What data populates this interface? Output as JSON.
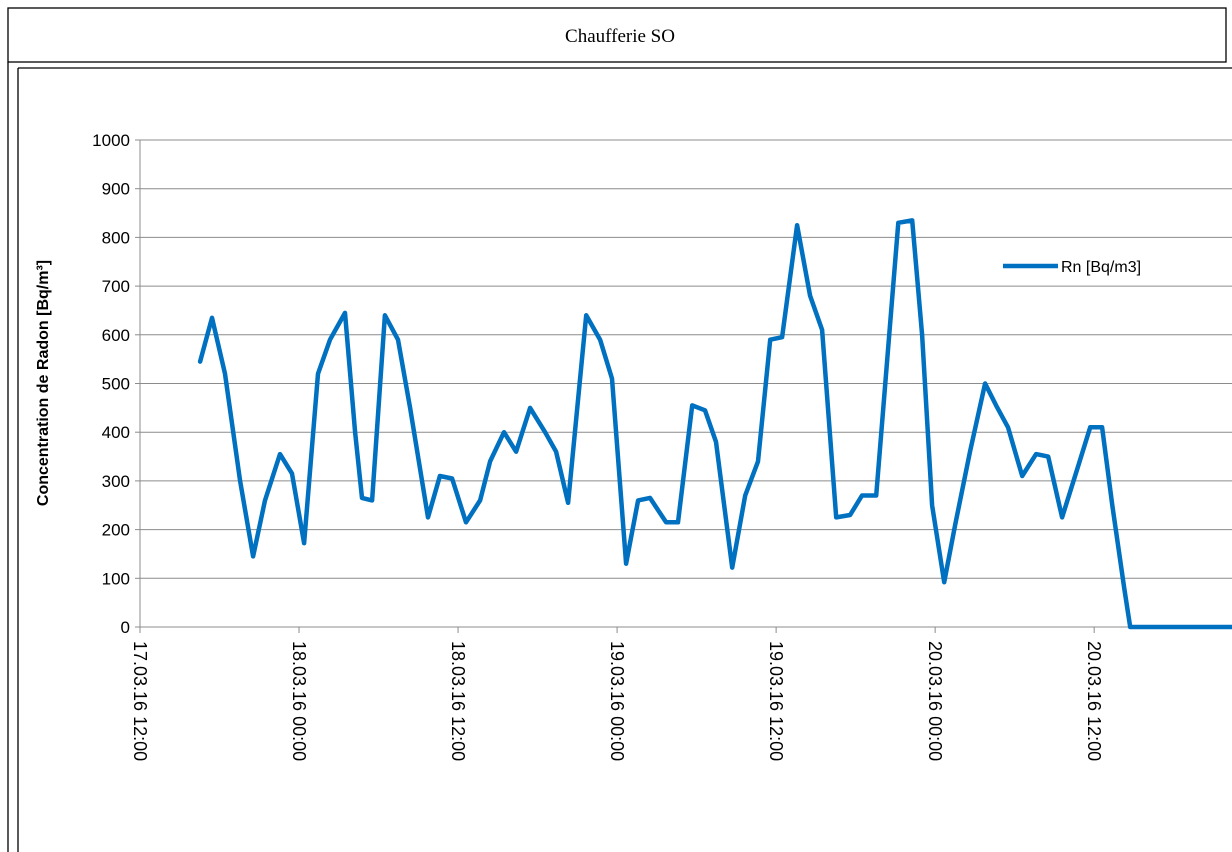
{
  "chart_data": {
    "type": "line",
    "title": "Chaufferie SO",
    "ylabel": "Concentration de Radon  [Bq/m³]",
    "ylim": [
      0,
      1000
    ],
    "yticks": [
      0,
      100,
      200,
      300,
      400,
      500,
      600,
      700,
      800,
      900,
      1000
    ],
    "xlim": [
      "17.03.16 12:00",
      "20.03.16 22:24"
    ],
    "xticks": [
      "17.03.16 12:00",
      "18.03.16 00:00",
      "18.03.16 12:00",
      "19.03.16 00:00",
      "19.03.16 12:00",
      "20.03.16 00:00",
      "20.03.16 12:00"
    ],
    "grid": true,
    "legend": "upper right",
    "x": [
      "17.03.16 16:32",
      "17.03.16 17:26",
      "17.03.16 18:25",
      "17.03.16 19:33",
      "17.03.16 20:32",
      "17.03.16 21:26",
      "17.03.16 22:34",
      "17.03.16 23:28",
      "18.03.16 00:23",
      "18.03.16 01:26",
      "18.03.16 02:20",
      "18.03.16 03:28",
      "18.03.16 04:14",
      "18.03.16 04:45",
      "18.03.16 05:31",
      "18.03.16 06:29",
      "18.03.16 07:28",
      "18.03.16 08:23",
      "18.03.16 09:44",
      "18.03.16 10:38",
      "18.03.16 11:33",
      "18.03.16 12:36",
      "18.03.16 13:40",
      "18.03.16 14:25",
      "18.03.16 15:28",
      "18.03.16 16:23",
      "18.03.16 17:26",
      "18.03.16 18:34",
      "18.03.16 19:24",
      "18.03.16 20:18",
      "18.03.16 21:40",
      "18.03.16 22:43",
      "18.03.16 23:37",
      "19.03.16 00:41",
      "19.03.16 01:35",
      "19.03.16 02:29",
      "19.03.16 03:42",
      "19.03.16 04:36",
      "19.03.16 05:40",
      "19.03.16 06:38",
      "19.03.16 07:28",
      "19.03.16 08:41",
      "19.03.16 09:40",
      "19.03.16 10:38",
      "19.03.16 11:33",
      "19.03.16 12:27",
      "19.03.16 13:35",
      "19.03.16 14:34",
      "19.03.16 15:28",
      "19.03.16 16:32",
      "19.03.16 17:35",
      "19.03.16 18:29",
      "19.03.16 19:33",
      "19.03.16 21:13",
      "19.03.16 22:16",
      "19.03.16 23:01",
      "19.03.16 23:46",
      "20.03.16 00:41",
      "20.03.16 01:31",
      "20.03.16 02:38",
      "20.03.16 03:46",
      "20.03.16 04:36",
      "20.03.16 05:30",
      "20.03.16 06:34",
      "20.03.16 07:37",
      "20.03.16 08:32",
      "20.03.16 09:35",
      "20.03.16 10:47",
      "20.03.16 11:42",
      "20.03.16 12:36",
      "20.03.16 13:22",
      "20.03.16 14:16",
      "20.03.16 14:43",
      "20.03.16 15:28",
      "20.03.16 22:24"
    ],
    "series": [
      {
        "name": "Rn [Bq/m3]",
        "color": "#0070c0",
        "values": [
          545,
          635,
          520,
          300,
          145,
          260,
          355,
          315,
          172,
          520,
          590,
          645,
          400,
          265,
          260,
          640,
          590,
          450,
          225,
          310,
          305,
          215,
          260,
          340,
          400,
          360,
          450,
          400,
          360,
          255,
          640,
          590,
          510,
          130,
          260,
          265,
          215,
          215,
          455,
          445,
          380,
          122,
          270,
          340,
          590,
          595,
          825,
          680,
          610,
          225,
          230,
          270,
          270,
          830,
          835,
          600,
          250,
          92,
          210,
          360,
          500,
          455,
          410,
          310,
          355,
          350,
          225,
          330,
          410,
          410,
          250,
          80,
          0,
          0,
          0
        ]
      }
    ]
  }
}
